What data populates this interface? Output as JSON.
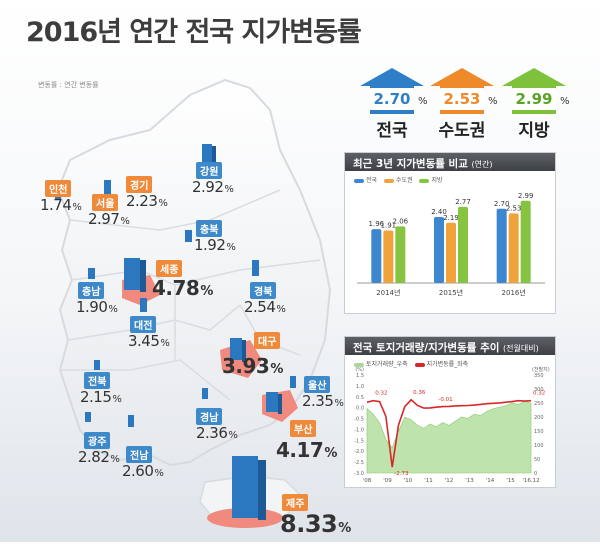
{
  "title": "2016년 연간 전국 지가변동률",
  "legend_note": "변동률 : 연간 변동률",
  "summary": [
    {
      "name": "전국",
      "value": "2.70",
      "unit": "%",
      "color": "#2f7fc8"
    },
    {
      "name": "수도권",
      "value": "2.53",
      "unit": "%",
      "color": "#ee8a2a"
    },
    {
      "name": "지방",
      "value": "2.99",
      "unit": "%",
      "color": "#7dc23a"
    }
  ],
  "regions": [
    {
      "name": "인천",
      "value": "1.74",
      "unit": "%",
      "label_color": "#ee8a3a"
    },
    {
      "name": "서울",
      "value": "2.97",
      "unit": "%",
      "label_color": "#ee8a3a"
    },
    {
      "name": "경기",
      "value": "2.23",
      "unit": "%",
      "label_color": "#ee8a3a"
    },
    {
      "name": "강원",
      "value": "2.92",
      "unit": "%",
      "label_color": "#3e89c9"
    },
    {
      "name": "충북",
      "value": "1.92",
      "unit": "%",
      "label_color": "#3e89c9"
    },
    {
      "name": "세종",
      "value": "4.78",
      "unit": "%",
      "label_color": "#ee8a3a"
    },
    {
      "name": "충남",
      "value": "1.90",
      "unit": "%",
      "label_color": "#3e89c9"
    },
    {
      "name": "대전",
      "value": "3.45",
      "unit": "%",
      "label_color": "#3e89c9"
    },
    {
      "name": "경북",
      "value": "2.54",
      "unit": "%",
      "label_color": "#3e89c9"
    },
    {
      "name": "대구",
      "value": "3.93",
      "unit": "%",
      "label_color": "#ee8a3a"
    },
    {
      "name": "전북",
      "value": "2.15",
      "unit": "%",
      "label_color": "#3e89c9"
    },
    {
      "name": "울산",
      "value": "2.35",
      "unit": "%",
      "label_color": "#3e89c9"
    },
    {
      "name": "경남",
      "value": "2.36",
      "unit": "%",
      "label_color": "#3e89c9"
    },
    {
      "name": "부산",
      "value": "4.17",
      "unit": "%",
      "label_color": "#ee8a3a"
    },
    {
      "name": "광주",
      "value": "2.82",
      "unit": "%",
      "label_color": "#3e89c9"
    },
    {
      "name": "전남",
      "value": "2.60",
      "unit": "%",
      "label_color": "#3e89c9"
    },
    {
      "name": "제주",
      "value": "8.33",
      "unit": "%",
      "label_color": "#ee8a3a"
    }
  ],
  "chart_data": [
    {
      "type": "bar",
      "title": "최근 3년 지가변동률 비교",
      "subtitle": "(연간)",
      "categories": [
        "2014년",
        "2015년",
        "2016년"
      ],
      "series": [
        {
          "name": "전국",
          "values": [
            1.96,
            2.4,
            2.7
          ],
          "color": "#3d86d0"
        },
        {
          "name": "수도권",
          "values": [
            1.91,
            2.19,
            2.53
          ],
          "color": "#efa33a"
        },
        {
          "name": "지방",
          "values": [
            2.06,
            2.77,
            2.99
          ],
          "color": "#86c440"
        }
      ],
      "ylim": [
        0,
        3.2
      ],
      "legend": "top-left"
    },
    {
      "type": "line",
      "title": "전국 토지거래량/지가변동률 추이",
      "subtitle": "(전월대비)",
      "series_names": [
        "토지거래량_우축",
        "지가변동률_좌축"
      ],
      "x_ticks": [
        "'08",
        "'09",
        "'10",
        "'11",
        "'12",
        "'13",
        "'14",
        "'15",
        "'16.12"
      ],
      "y_left_ticks": [
        "1.5",
        "1.0",
        "0.5",
        "0.0",
        "-0.5",
        "-1.0",
        "-1.5",
        "-2.0",
        "-2.5",
        "-3.0"
      ],
      "y_left_unit": "(%)",
      "y_right_ticks": [
        "350",
        "300",
        "250",
        "200",
        "150",
        "100",
        "50",
        "0"
      ],
      "y_right_unit": "(천필지)",
      "ylim_left": [
        -3.0,
        1.5
      ],
      "ylim_right": [
        0,
        350
      ],
      "annotations": [
        "0.32",
        "-2.73",
        "0.36",
        "-0.01",
        "0.32"
      ],
      "land_rate": [
        0.25,
        0.32,
        0.28,
        -0.4,
        -2.73,
        -0.8,
        0.05,
        0.36,
        0.1,
        -0.02,
        -0.01,
        0.02,
        0.05,
        0.06,
        0.08,
        0.09,
        0.1,
        0.12,
        0.15,
        0.18,
        0.2,
        0.22,
        0.25,
        0.28,
        0.32,
        0.3,
        0.32
      ],
      "land_volume": [
        230,
        210,
        180,
        120,
        90,
        150,
        200,
        190,
        170,
        160,
        175,
        165,
        180,
        170,
        185,
        200,
        195,
        210,
        205,
        220,
        230,
        235,
        240,
        250,
        245,
        255,
        250
      ]
    }
  ]
}
